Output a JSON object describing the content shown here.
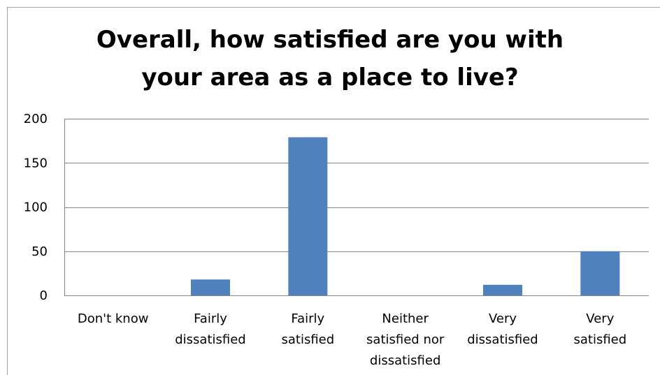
{
  "chart_data": {
    "type": "bar",
    "title": "Overall, how satisfied are you with your area as a place to live?",
    "title_lines": [
      "Overall, how satisfied are you with",
      "your area as a place to live?"
    ],
    "categories": [
      "Don't know",
      "Fairly dissatisfied",
      "Fairly satisfied",
      "Neither satisfied nor dissatisfied",
      "Very dissatisfied",
      "Very satisfied"
    ],
    "category_lines": [
      [
        "Don't know"
      ],
      [
        "Fairly",
        "dissatisfied"
      ],
      [
        "Fairly",
        "satisfied"
      ],
      [
        "Neither",
        "satisfied nor",
        "dissatisfied"
      ],
      [
        "Very",
        "dissatisfied"
      ],
      [
        "Very",
        "satisfied"
      ]
    ],
    "values": [
      0,
      18,
      179,
      0,
      12,
      50
    ],
    "ylim": [
      0,
      200
    ],
    "yticks": [
      0,
      50,
      100,
      150,
      200
    ],
    "grid": true,
    "legend": "none",
    "bar_color": "#4f81bd",
    "grid_color": "#868686"
  }
}
